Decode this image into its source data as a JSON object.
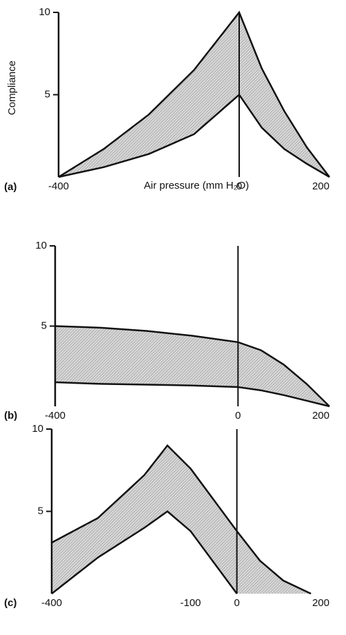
{
  "chart_data": [
    {
      "type": "band",
      "panel_label": "(a)",
      "y_label": "Compliance",
      "x_label": "Air pressure (mm H₂O)",
      "xlim": [
        -400,
        200
      ],
      "xticks": [
        -400,
        0,
        200
      ],
      "ylim": [
        0,
        10
      ],
      "yticks": [
        5,
        10
      ],
      "series": [
        {
          "color": "#111",
          "x": [
            -400,
            -300,
            -200,
            -100,
            0,
            50,
            100,
            150,
            200
          ],
          "values": [
            0,
            1.7,
            3.8,
            6.5,
            10,
            6.6,
            4.0,
            1.8,
            0
          ]
        },
        {
          "color": "#111",
          "x": [
            -400,
            -300,
            -200,
            -100,
            0,
            50,
            100,
            150,
            200
          ],
          "values": [
            0,
            0.6,
            1.4,
            2.6,
            5,
            3.0,
            1.7,
            0.8,
            0
          ]
        }
      ]
    },
    {
      "type": "band",
      "panel_label": "(b)",
      "xlim": [
        -400,
        200
      ],
      "xticks": [
        -400,
        0,
        200
      ],
      "ylim": [
        0,
        10
      ],
      "yticks": [
        5,
        10
      ],
      "series": [
        {
          "color": "#111",
          "x": [
            -400,
            -300,
            -200,
            -100,
            0,
            50,
            100,
            150,
            200
          ],
          "values": [
            5,
            4.9,
            4.7,
            4.4,
            4.0,
            3.5,
            2.6,
            1.4,
            0
          ]
        },
        {
          "color": "#111",
          "x": [
            -400,
            -300,
            -200,
            -100,
            0,
            50,
            100,
            150,
            200
          ],
          "values": [
            1.5,
            1.4,
            1.35,
            1.3,
            1.2,
            1.0,
            0.7,
            0.35,
            0
          ]
        }
      ]
    },
    {
      "type": "band",
      "panel_label": "(c)",
      "xlim": [
        -400,
        200
      ],
      "xticks": [
        -400,
        -100,
        0,
        200
      ],
      "ylim": [
        0,
        10
      ],
      "yticks": [
        5,
        10
      ],
      "series": [
        {
          "color": "#111",
          "x": [
            -400,
            -300,
            -200,
            -150,
            -100,
            -50,
            0,
            50,
            100,
            160
          ],
          "values": [
            3.1,
            4.6,
            7.2,
            9,
            7.6,
            5.7,
            3.8,
            2.0,
            0.8,
            0
          ]
        },
        {
          "color": "#111",
          "x": [
            -400,
            -300,
            -200,
            -150,
            -100,
            -50,
            0
          ],
          "values": [
            0,
            2.2,
            4.0,
            5,
            3.8,
            1.9,
            0
          ]
        }
      ]
    }
  ]
}
